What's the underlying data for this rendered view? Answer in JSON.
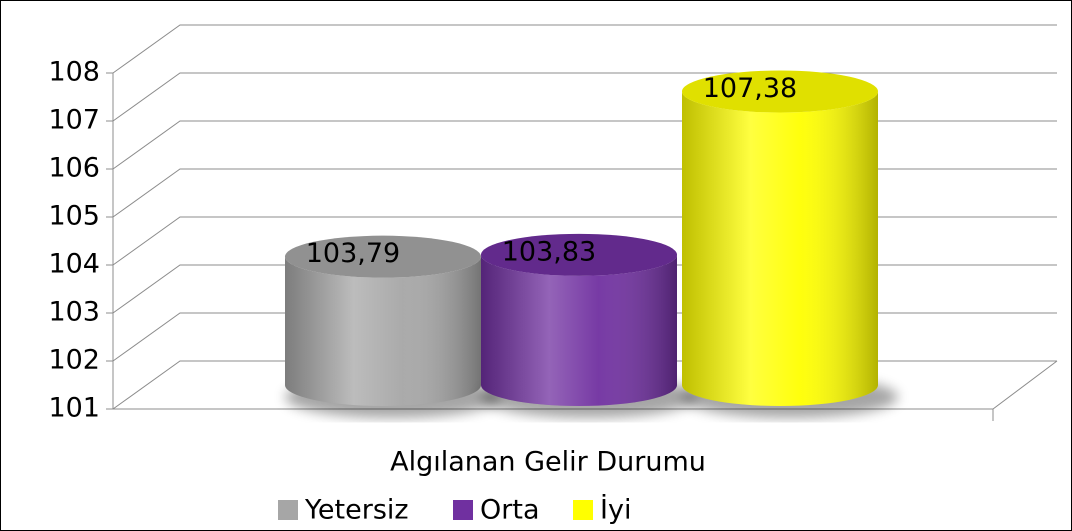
{
  "chart_data": {
    "type": "bar3d",
    "categories": [
      "Algılanan Gelir Durumu"
    ],
    "series": [
      {
        "name": "Yetersiz",
        "color": "#a6a6a6",
        "values": [
          103.79
        ],
        "value_labels": [
          "103,79"
        ]
      },
      {
        "name": "Orta",
        "color": "#7030a0",
        "values": [
          103.83
        ],
        "value_labels": [
          "103,83"
        ]
      },
      {
        "name": "İyi",
        "color": "#ffff00",
        "values": [
          107.38
        ],
        "value_labels": [
          "107,38"
        ]
      }
    ],
    "ylim": [
      101,
      108
    ],
    "yticks": [
      101,
      102,
      103,
      104,
      105,
      106,
      107,
      108
    ],
    "grid": true,
    "legend": "bottom"
  }
}
